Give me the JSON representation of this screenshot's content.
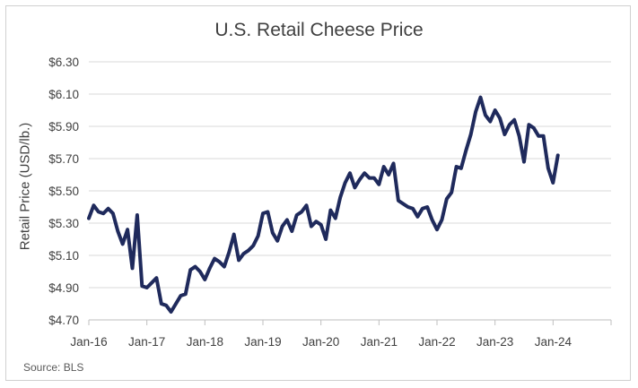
{
  "chart_data": {
    "type": "line",
    "title": "U.S. Retail Cheese Price",
    "xlabel": "",
    "ylabel": "Retail Price (USD/lb.)",
    "source": "Source: BLS",
    "x_ticks": [
      "Jan-16",
      "Jan-17",
      "Jan-18",
      "Jan-19",
      "Jan-20",
      "Jan-21",
      "Jan-22",
      "Jan-23",
      "Jan-24"
    ],
    "y_ticks": [
      "$4.70",
      "$4.90",
      "$5.10",
      "$5.30",
      "$5.50",
      "$5.70",
      "$5.90",
      "$6.10",
      "$6.30"
    ],
    "ylim": [
      4.7,
      6.3
    ],
    "xlim": [
      "2016-01",
      "2025-01"
    ],
    "grid": "horizontal",
    "line_color": "#1f2a5c",
    "series": [
      {
        "x": [
          "2016-01",
          "2016-02",
          "2016-03",
          "2016-04",
          "2016-05",
          "2016-06",
          "2016-07",
          "2016-08",
          "2016-09",
          "2016-10",
          "2016-11",
          "2016-12",
          "2017-01",
          "2017-02",
          "2017-03",
          "2017-04",
          "2017-05",
          "2017-06",
          "2017-07",
          "2017-08",
          "2017-09",
          "2017-10",
          "2017-11",
          "2017-12",
          "2018-01",
          "2018-02",
          "2018-03",
          "2018-04",
          "2018-05",
          "2018-06",
          "2018-07",
          "2018-08",
          "2018-09",
          "2018-10",
          "2018-11",
          "2018-12",
          "2019-01",
          "2019-02",
          "2019-03",
          "2019-04",
          "2019-05",
          "2019-06",
          "2019-07",
          "2019-08",
          "2019-09",
          "2019-10",
          "2019-11",
          "2019-12",
          "2020-01",
          "2020-02",
          "2020-03",
          "2020-04",
          "2020-05",
          "2020-06",
          "2020-07",
          "2020-08",
          "2020-09",
          "2020-10",
          "2020-11",
          "2020-12",
          "2021-01",
          "2021-02",
          "2021-03",
          "2021-04",
          "2021-05",
          "2021-06",
          "2021-07",
          "2021-08",
          "2021-09",
          "2021-10",
          "2021-11",
          "2021-12",
          "2022-01",
          "2022-02",
          "2022-03",
          "2022-04",
          "2022-05",
          "2022-06",
          "2022-07",
          "2022-08",
          "2022-09",
          "2022-10",
          "2022-11",
          "2022-12",
          "2023-01",
          "2023-02",
          "2023-03",
          "2023-04",
          "2023-05",
          "2023-06",
          "2023-07",
          "2023-08",
          "2023-09",
          "2023-10",
          "2023-11",
          "2023-12",
          "2024-01",
          "2024-02"
        ],
        "values": [
          5.33,
          5.41,
          5.37,
          5.36,
          5.39,
          5.36,
          5.25,
          5.17,
          5.26,
          5.02,
          5.35,
          4.91,
          4.9,
          4.93,
          4.96,
          4.8,
          4.79,
          4.75,
          4.8,
          4.85,
          4.86,
          5.01,
          5.03,
          5.0,
          4.95,
          5.02,
          5.08,
          5.06,
          5.03,
          5.12,
          5.23,
          5.07,
          5.11,
          5.13,
          5.16,
          5.22,
          5.36,
          5.37,
          5.24,
          5.19,
          5.28,
          5.32,
          5.25,
          5.35,
          5.37,
          5.41,
          5.28,
          5.31,
          5.29,
          5.2,
          5.38,
          5.33,
          5.46,
          5.55,
          5.61,
          5.52,
          5.57,
          5.61,
          5.58,
          5.58,
          5.54,
          5.65,
          5.6,
          5.67,
          5.44,
          5.42,
          5.4,
          5.39,
          5.34,
          5.39,
          5.4,
          5.32,
          5.26,
          5.32,
          5.45,
          5.49,
          5.65,
          5.64,
          5.75,
          5.85,
          5.99,
          6.08,
          5.97,
          5.93,
          6.0,
          5.95,
          5.85,
          5.91,
          5.94,
          5.84,
          5.68,
          5.91,
          5.89,
          5.84,
          5.84,
          5.64,
          5.55,
          5.72
        ]
      }
    ]
  }
}
